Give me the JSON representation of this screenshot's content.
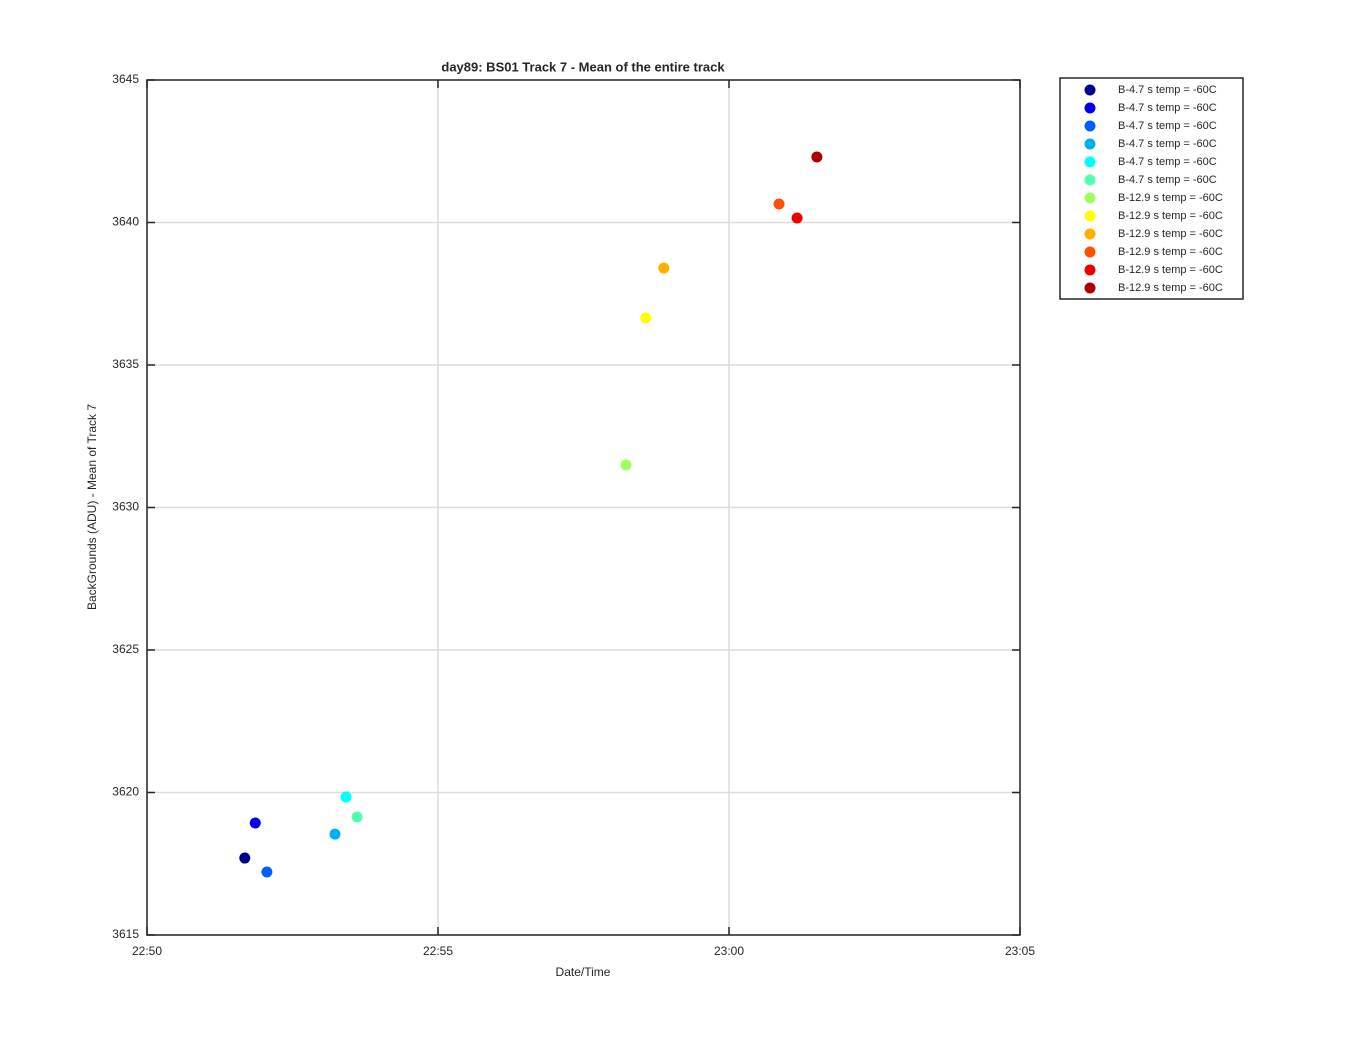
{
  "chart_data": {
    "type": "scatter",
    "title": "day89: BS01  Track 7 - Mean of the entire track",
    "x_label": "Date/Time",
    "y_label": "BackGrounds (ADU) - Mean of Track 7",
    "xlim": [
      1370,
      1385
    ],
    "xticks": [
      {
        "value": 1370,
        "label": "22:50"
      },
      {
        "value": 1375,
        "label": "22:55"
      },
      {
        "value": 1380,
        "label": "23:00"
      },
      {
        "value": 1385,
        "label": "23:05"
      }
    ],
    "ylim": [
      3615,
      3645
    ],
    "yticks": [
      3615,
      3620,
      3625,
      3630,
      3635,
      3640,
      3645
    ],
    "grid": true,
    "legend": "outside-right",
    "series": [
      {
        "name": "B-4.7 s temp = -60C",
        "color": "#00008f",
        "x": [
          1371.68
        ],
        "values": [
          3617.7
        ]
      },
      {
        "name": "B-4.7 s temp = -60C",
        "color": "#0000ef",
        "x": [
          1371.86
        ],
        "values": [
          3618.93
        ]
      },
      {
        "name": "B-4.7 s temp = -60C",
        "color": "#0060ff",
        "x": [
          1372.06
        ],
        "values": [
          3617.21
        ]
      },
      {
        "name": "B-4.7 s temp = -60C",
        "color": "#00afef",
        "x": [
          1373.23
        ],
        "values": [
          3618.54
        ]
      },
      {
        "name": "B-4.7 s temp = -60C",
        "color": "#00ffff",
        "x": [
          1373.42
        ],
        "values": [
          3619.84
        ]
      },
      {
        "name": "B-4.7 s temp = -60C",
        "color": "#50ffaf",
        "x": [
          1373.61
        ],
        "values": [
          3619.14
        ]
      },
      {
        "name": "B-12.9 s temp = -60C",
        "color": "#9fff60",
        "x": [
          1378.23
        ],
        "values": [
          3631.49
        ]
      },
      {
        "name": "B-12.9 s temp = -60C",
        "color": "#ffff00",
        "x": [
          1378.57
        ],
        "values": [
          3636.65
        ]
      },
      {
        "name": "B-12.9 s temp = -60C",
        "color": "#ffaf00",
        "x": [
          1378.88
        ],
        "values": [
          3638.4
        ]
      },
      {
        "name": "B-12.9 s temp = -60C",
        "color": "#ff5000",
        "x": [
          1380.86
        ],
        "values": [
          3640.65
        ]
      },
      {
        "name": "B-12.9 s temp = -60C",
        "color": "#ef0000",
        "x": [
          1381.17
        ],
        "values": [
          3640.16
        ]
      },
      {
        "name": "B-12.9 s temp = -60C",
        "color": "#af0000",
        "x": [
          1381.51
        ],
        "values": [
          3642.3
        ]
      }
    ]
  }
}
